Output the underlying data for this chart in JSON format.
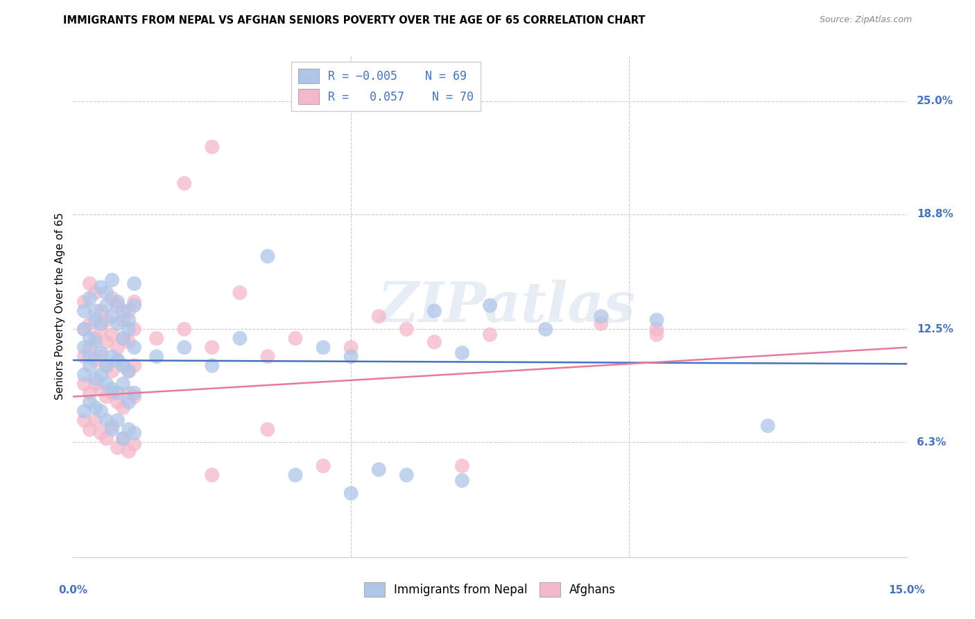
{
  "title": "IMMIGRANTS FROM NEPAL VS AFGHAN SENIORS POVERTY OVER THE AGE OF 65 CORRELATION CHART",
  "source": "Source: ZipAtlas.com",
  "ylabel": "Seniors Poverty Over the Age of 65",
  "ytick_vals": [
    6.3,
    12.5,
    18.8,
    25.0
  ],
  "ytick_labels": [
    "6.3%",
    "12.5%",
    "18.8%",
    "25.0%"
  ],
  "xlim": [
    0.0,
    15.0
  ],
  "ylim": [
    0.0,
    27.5
  ],
  "legend_label1": "Immigrants from Nepal",
  "legend_label2": "Afghans",
  "nepal_color": "#aec6e8",
  "afghan_color": "#f4b8c8",
  "nepal_line_color": "#4472c4",
  "afghan_line_color": "#e8799a",
  "nepal_line": [
    10.8,
    10.6
  ],
  "afghan_line": [
    8.8,
    11.5
  ],
  "nepal_scatter": [
    [
      0.2,
      13.5
    ],
    [
      0.3,
      14.2
    ],
    [
      0.4,
      13.0
    ],
    [
      0.5,
      14.8
    ],
    [
      0.6,
      13.8
    ],
    [
      0.7,
      15.2
    ],
    [
      0.8,
      14.0
    ],
    [
      0.9,
      13.5
    ],
    [
      1.0,
      13.0
    ],
    [
      1.1,
      15.0
    ],
    [
      0.2,
      12.5
    ],
    [
      0.3,
      12.0
    ],
    [
      0.4,
      13.5
    ],
    [
      0.5,
      12.8
    ],
    [
      0.6,
      14.5
    ],
    [
      0.7,
      13.2
    ],
    [
      0.8,
      12.8
    ],
    [
      0.9,
      12.0
    ],
    [
      1.0,
      12.5
    ],
    [
      1.1,
      13.8
    ],
    [
      0.2,
      11.5
    ],
    [
      0.3,
      11.0
    ],
    [
      0.4,
      11.8
    ],
    [
      0.5,
      11.2
    ],
    [
      0.6,
      10.5
    ],
    [
      0.7,
      11.0
    ],
    [
      0.8,
      10.8
    ],
    [
      0.9,
      10.5
    ],
    [
      1.0,
      10.2
    ],
    [
      1.1,
      11.5
    ],
    [
      0.2,
      10.0
    ],
    [
      0.3,
      10.5
    ],
    [
      0.4,
      9.8
    ],
    [
      0.5,
      10.0
    ],
    [
      0.6,
      9.5
    ],
    [
      0.7,
      9.2
    ],
    [
      0.8,
      9.0
    ],
    [
      0.9,
      9.5
    ],
    [
      1.0,
      8.5
    ],
    [
      1.1,
      9.0
    ],
    [
      0.2,
      8.0
    ],
    [
      0.3,
      8.5
    ],
    [
      0.4,
      8.2
    ],
    [
      0.5,
      8.0
    ],
    [
      0.6,
      7.5
    ],
    [
      0.7,
      7.0
    ],
    [
      0.8,
      7.5
    ],
    [
      0.9,
      6.5
    ],
    [
      1.0,
      7.0
    ],
    [
      1.1,
      6.8
    ],
    [
      1.5,
      11.0
    ],
    [
      2.0,
      11.5
    ],
    [
      2.5,
      10.5
    ],
    [
      3.0,
      12.0
    ],
    [
      3.5,
      16.5
    ],
    [
      4.5,
      11.5
    ],
    [
      5.0,
      11.0
    ],
    [
      6.5,
      13.5
    ],
    [
      7.0,
      11.2
    ],
    [
      7.5,
      13.8
    ],
    [
      8.5,
      12.5
    ],
    [
      9.5,
      13.2
    ],
    [
      10.5,
      13.0
    ],
    [
      12.5,
      7.2
    ],
    [
      4.0,
      4.5
    ],
    [
      5.5,
      4.8
    ],
    [
      6.0,
      4.5
    ],
    [
      7.0,
      4.2
    ],
    [
      5.0,
      3.5
    ]
  ],
  "afghan_scatter": [
    [
      0.2,
      14.0
    ],
    [
      0.3,
      15.0
    ],
    [
      0.4,
      14.5
    ],
    [
      0.5,
      13.5
    ],
    [
      0.6,
      13.0
    ],
    [
      0.7,
      14.2
    ],
    [
      0.8,
      13.8
    ],
    [
      0.9,
      13.0
    ],
    [
      1.0,
      13.5
    ],
    [
      1.1,
      14.0
    ],
    [
      0.2,
      12.5
    ],
    [
      0.3,
      12.8
    ],
    [
      0.4,
      12.0
    ],
    [
      0.5,
      12.5
    ],
    [
      0.6,
      11.8
    ],
    [
      0.7,
      12.2
    ],
    [
      0.8,
      11.5
    ],
    [
      0.9,
      12.0
    ],
    [
      1.0,
      11.8
    ],
    [
      1.1,
      12.5
    ],
    [
      0.2,
      11.0
    ],
    [
      0.3,
      11.5
    ],
    [
      0.4,
      10.8
    ],
    [
      0.5,
      11.0
    ],
    [
      0.6,
      10.5
    ],
    [
      0.7,
      10.2
    ],
    [
      0.8,
      10.8
    ],
    [
      0.9,
      10.5
    ],
    [
      1.0,
      10.2
    ],
    [
      1.1,
      10.5
    ],
    [
      0.2,
      9.5
    ],
    [
      0.3,
      9.0
    ],
    [
      0.4,
      9.5
    ],
    [
      0.5,
      9.2
    ],
    [
      0.6,
      8.8
    ],
    [
      0.7,
      9.0
    ],
    [
      0.8,
      8.5
    ],
    [
      0.9,
      8.2
    ],
    [
      1.0,
      9.0
    ],
    [
      1.1,
      8.8
    ],
    [
      0.2,
      7.5
    ],
    [
      0.3,
      7.0
    ],
    [
      0.4,
      7.5
    ],
    [
      0.5,
      6.8
    ],
    [
      0.6,
      6.5
    ],
    [
      0.7,
      7.2
    ],
    [
      0.8,
      6.0
    ],
    [
      0.9,
      6.5
    ],
    [
      1.0,
      5.8
    ],
    [
      1.1,
      6.2
    ],
    [
      1.5,
      12.0
    ],
    [
      2.0,
      12.5
    ],
    [
      2.5,
      11.5
    ],
    [
      3.0,
      14.5
    ],
    [
      3.5,
      11.0
    ],
    [
      2.5,
      22.5
    ],
    [
      4.0,
      12.0
    ],
    [
      5.5,
      13.2
    ],
    [
      6.0,
      12.5
    ],
    [
      6.5,
      11.8
    ],
    [
      7.5,
      12.2
    ],
    [
      9.5,
      12.8
    ],
    [
      10.5,
      12.2
    ],
    [
      10.5,
      12.5
    ],
    [
      4.5,
      5.0
    ],
    [
      5.0,
      11.5
    ],
    [
      3.5,
      7.0
    ],
    [
      7.0,
      5.0
    ],
    [
      2.5,
      4.5
    ],
    [
      2.0,
      20.5
    ]
  ]
}
